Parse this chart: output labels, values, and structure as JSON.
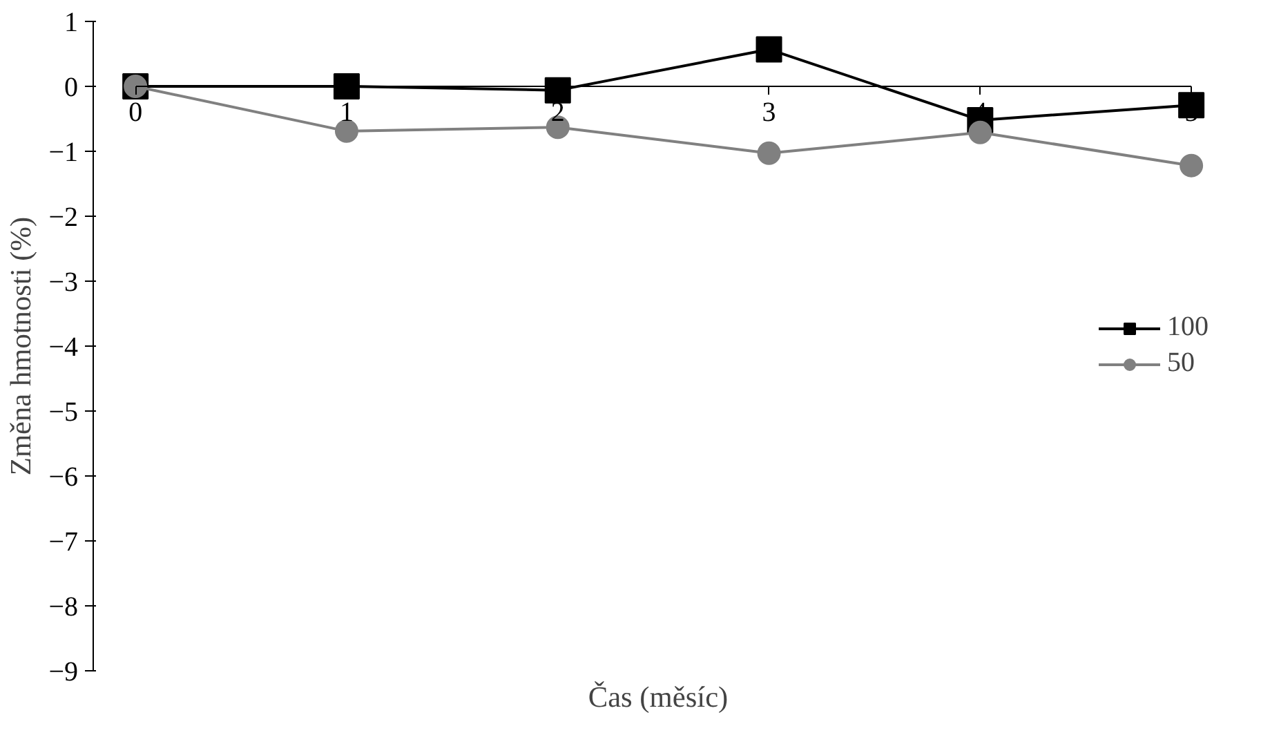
{
  "chart_data": {
    "type": "line",
    "xlabel": "Čas (měsíc)",
    "ylabel": "Změna hmotnosti (%)",
    "x": [
      0,
      1,
      2,
      3,
      4,
      5
    ],
    "xlim": [
      0,
      5
    ],
    "xticks": [
      0,
      1,
      2,
      3,
      4,
      5
    ],
    "ylim": [
      -9,
      1
    ],
    "yticks": [
      -9,
      -8,
      -7,
      -6,
      -5,
      -4,
      -3,
      -2,
      -1,
      0,
      1
    ],
    "series": [
      {
        "name": "100",
        "color": "#000000",
        "marker": "square",
        "values": [
          0,
          0,
          -0.06,
          0.57,
          -0.52,
          -0.29
        ]
      },
      {
        "name": "50",
        "color": "#808080",
        "marker": "circle",
        "values": [
          0,
          -0.69,
          -0.63,
          -1.03,
          -0.71,
          -1.22
        ]
      }
    ],
    "grid": false,
    "legend": "right",
    "line_style": "solid"
  }
}
